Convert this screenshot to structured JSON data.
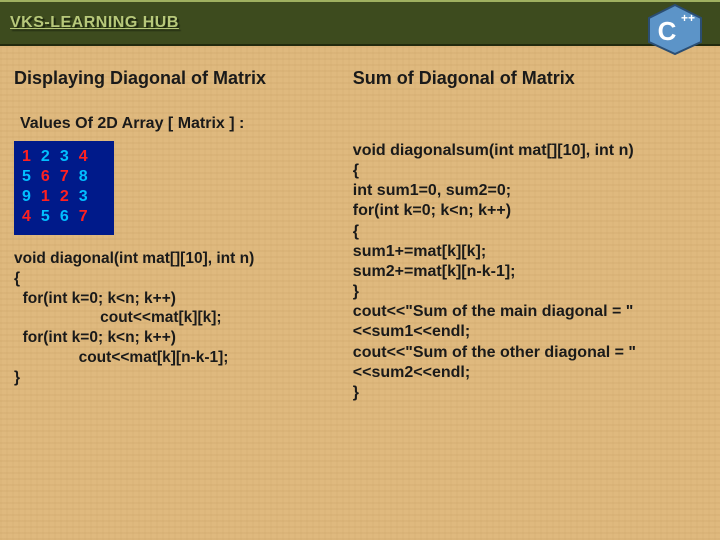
{
  "header": {
    "brand": "VKS-LEARNING HUB",
    "logo_top": "++",
    "logo_main": "C"
  },
  "left": {
    "title": "Displaying Diagonal of Matrix",
    "subtitle": "Values Of 2D Array [ Matrix ] :",
    "matrix": {
      "rows": [
        [
          {
            "v": "1",
            "d": true
          },
          {
            "v": "2",
            "d": false
          },
          {
            "v": "3",
            "d": false
          },
          {
            "v": "4",
            "d": true
          }
        ],
        [
          {
            "v": "5",
            "d": false
          },
          {
            "v": "6",
            "d": true
          },
          {
            "v": "7",
            "d": true
          },
          {
            "v": "8",
            "d": false
          }
        ],
        [
          {
            "v": "9",
            "d": false
          },
          {
            "v": "1",
            "d": true
          },
          {
            "v": "2",
            "d": true
          },
          {
            "v": "3",
            "d": false
          }
        ],
        [
          {
            "v": "4",
            "d": true
          },
          {
            "v": "5",
            "d": false
          },
          {
            "v": "6",
            "d": false
          },
          {
            "v": "7",
            "d": true
          }
        ]
      ],
      "bg_color": "#001a8a",
      "offdiag_color": "#00bfff",
      "diag_color": "#ff2020"
    },
    "code": "void diagonal(int mat[][10], int n)\n{\n  for(int k=0; k<n; k++)\n                    cout<<mat[k][k];\n  for(int k=0; k<n; k++)\n               cout<<mat[k][n-k-1];\n}"
  },
  "right": {
    "title": "Sum of  Diagonal of Matrix",
    "code": "void diagonalsum(int mat[][10], int n)\n{\nint sum1=0, sum2=0;\nfor(int k=0; k<n; k++)\n{\nsum1+=mat[k][k];\nsum2+=mat[k][n-k-1];\n}\ncout<<\"Sum of the main diagonal = \"<<sum1<<endl;\ncout<<\"Sum of the other diagonal = \"<<sum2<<endl;\n}"
  },
  "colors": {
    "page_bg": "#dfb97e",
    "topbar_bg": "#3d4b1e",
    "brand_color": "#b7c87a",
    "text_color": "#1a1a1a"
  }
}
